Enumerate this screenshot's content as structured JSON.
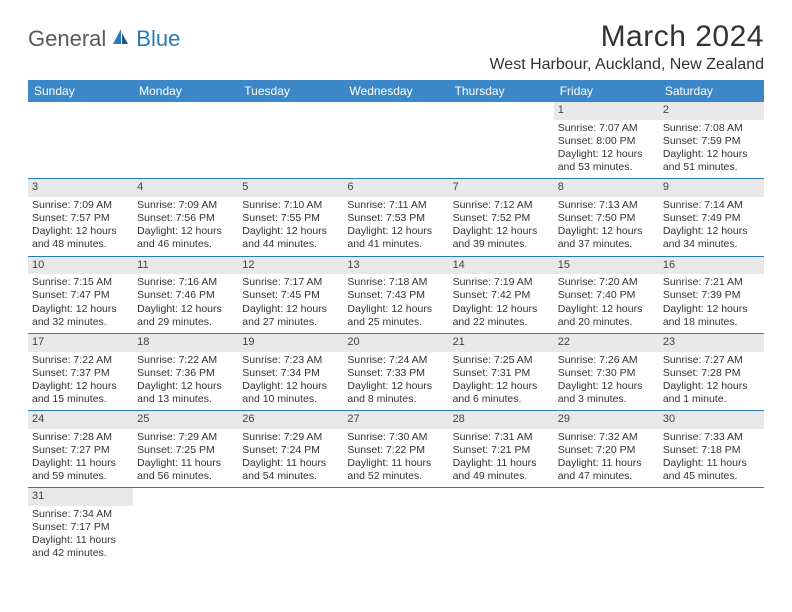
{
  "brand": {
    "part1": "General",
    "part2": "Blue"
  },
  "title": "March 2024",
  "location": "West Harbour, Auckland, New Zealand",
  "colors": {
    "header_bg": "#3b87c8",
    "header_text": "#ffffff",
    "row_divider": "#2a7ab8",
    "daynum_bg": "#e8e8e8",
    "text": "#333333",
    "logo_gray": "#5a5a5a",
    "logo_blue": "#2a7ab8"
  },
  "weekdays": [
    "Sunday",
    "Monday",
    "Tuesday",
    "Wednesday",
    "Thursday",
    "Friday",
    "Saturday"
  ],
  "weeks": [
    [
      null,
      null,
      null,
      null,
      null,
      {
        "n": "1",
        "sr": "Sunrise: 7:07 AM",
        "ss": "Sunset: 8:00 PM",
        "d1": "Daylight: 12 hours",
        "d2": "and 53 minutes."
      },
      {
        "n": "2",
        "sr": "Sunrise: 7:08 AM",
        "ss": "Sunset: 7:59 PM",
        "d1": "Daylight: 12 hours",
        "d2": "and 51 minutes."
      }
    ],
    [
      {
        "n": "3",
        "sr": "Sunrise: 7:09 AM",
        "ss": "Sunset: 7:57 PM",
        "d1": "Daylight: 12 hours",
        "d2": "and 48 minutes."
      },
      {
        "n": "4",
        "sr": "Sunrise: 7:09 AM",
        "ss": "Sunset: 7:56 PM",
        "d1": "Daylight: 12 hours",
        "d2": "and 46 minutes."
      },
      {
        "n": "5",
        "sr": "Sunrise: 7:10 AM",
        "ss": "Sunset: 7:55 PM",
        "d1": "Daylight: 12 hours",
        "d2": "and 44 minutes."
      },
      {
        "n": "6",
        "sr": "Sunrise: 7:11 AM",
        "ss": "Sunset: 7:53 PM",
        "d1": "Daylight: 12 hours",
        "d2": "and 41 minutes."
      },
      {
        "n": "7",
        "sr": "Sunrise: 7:12 AM",
        "ss": "Sunset: 7:52 PM",
        "d1": "Daylight: 12 hours",
        "d2": "and 39 minutes."
      },
      {
        "n": "8",
        "sr": "Sunrise: 7:13 AM",
        "ss": "Sunset: 7:50 PM",
        "d1": "Daylight: 12 hours",
        "d2": "and 37 minutes."
      },
      {
        "n": "9",
        "sr": "Sunrise: 7:14 AM",
        "ss": "Sunset: 7:49 PM",
        "d1": "Daylight: 12 hours",
        "d2": "and 34 minutes."
      }
    ],
    [
      {
        "n": "10",
        "sr": "Sunrise: 7:15 AM",
        "ss": "Sunset: 7:47 PM",
        "d1": "Daylight: 12 hours",
        "d2": "and 32 minutes."
      },
      {
        "n": "11",
        "sr": "Sunrise: 7:16 AM",
        "ss": "Sunset: 7:46 PM",
        "d1": "Daylight: 12 hours",
        "d2": "and 29 minutes."
      },
      {
        "n": "12",
        "sr": "Sunrise: 7:17 AM",
        "ss": "Sunset: 7:45 PM",
        "d1": "Daylight: 12 hours",
        "d2": "and 27 minutes."
      },
      {
        "n": "13",
        "sr": "Sunrise: 7:18 AM",
        "ss": "Sunset: 7:43 PM",
        "d1": "Daylight: 12 hours",
        "d2": "and 25 minutes."
      },
      {
        "n": "14",
        "sr": "Sunrise: 7:19 AM",
        "ss": "Sunset: 7:42 PM",
        "d1": "Daylight: 12 hours",
        "d2": "and 22 minutes."
      },
      {
        "n": "15",
        "sr": "Sunrise: 7:20 AM",
        "ss": "Sunset: 7:40 PM",
        "d1": "Daylight: 12 hours",
        "d2": "and 20 minutes."
      },
      {
        "n": "16",
        "sr": "Sunrise: 7:21 AM",
        "ss": "Sunset: 7:39 PM",
        "d1": "Daylight: 12 hours",
        "d2": "and 18 minutes."
      }
    ],
    [
      {
        "n": "17",
        "sr": "Sunrise: 7:22 AM",
        "ss": "Sunset: 7:37 PM",
        "d1": "Daylight: 12 hours",
        "d2": "and 15 minutes."
      },
      {
        "n": "18",
        "sr": "Sunrise: 7:22 AM",
        "ss": "Sunset: 7:36 PM",
        "d1": "Daylight: 12 hours",
        "d2": "and 13 minutes."
      },
      {
        "n": "19",
        "sr": "Sunrise: 7:23 AM",
        "ss": "Sunset: 7:34 PM",
        "d1": "Daylight: 12 hours",
        "d2": "and 10 minutes."
      },
      {
        "n": "20",
        "sr": "Sunrise: 7:24 AM",
        "ss": "Sunset: 7:33 PM",
        "d1": "Daylight: 12 hours",
        "d2": "and 8 minutes."
      },
      {
        "n": "21",
        "sr": "Sunrise: 7:25 AM",
        "ss": "Sunset: 7:31 PM",
        "d1": "Daylight: 12 hours",
        "d2": "and 6 minutes."
      },
      {
        "n": "22",
        "sr": "Sunrise: 7:26 AM",
        "ss": "Sunset: 7:30 PM",
        "d1": "Daylight: 12 hours",
        "d2": "and 3 minutes."
      },
      {
        "n": "23",
        "sr": "Sunrise: 7:27 AM",
        "ss": "Sunset: 7:28 PM",
        "d1": "Daylight: 12 hours",
        "d2": "and 1 minute."
      }
    ],
    [
      {
        "n": "24",
        "sr": "Sunrise: 7:28 AM",
        "ss": "Sunset: 7:27 PM",
        "d1": "Daylight: 11 hours",
        "d2": "and 59 minutes."
      },
      {
        "n": "25",
        "sr": "Sunrise: 7:29 AM",
        "ss": "Sunset: 7:25 PM",
        "d1": "Daylight: 11 hours",
        "d2": "and 56 minutes."
      },
      {
        "n": "26",
        "sr": "Sunrise: 7:29 AM",
        "ss": "Sunset: 7:24 PM",
        "d1": "Daylight: 11 hours",
        "d2": "and 54 minutes."
      },
      {
        "n": "27",
        "sr": "Sunrise: 7:30 AM",
        "ss": "Sunset: 7:22 PM",
        "d1": "Daylight: 11 hours",
        "d2": "and 52 minutes."
      },
      {
        "n": "28",
        "sr": "Sunrise: 7:31 AM",
        "ss": "Sunset: 7:21 PM",
        "d1": "Daylight: 11 hours",
        "d2": "and 49 minutes."
      },
      {
        "n": "29",
        "sr": "Sunrise: 7:32 AM",
        "ss": "Sunset: 7:20 PM",
        "d1": "Daylight: 11 hours",
        "d2": "and 47 minutes."
      },
      {
        "n": "30",
        "sr": "Sunrise: 7:33 AM",
        "ss": "Sunset: 7:18 PM",
        "d1": "Daylight: 11 hours",
        "d2": "and 45 minutes."
      }
    ],
    [
      {
        "n": "31",
        "sr": "Sunrise: 7:34 AM",
        "ss": "Sunset: 7:17 PM",
        "d1": "Daylight: 11 hours",
        "d2": "and 42 minutes."
      },
      null,
      null,
      null,
      null,
      null,
      null
    ]
  ]
}
